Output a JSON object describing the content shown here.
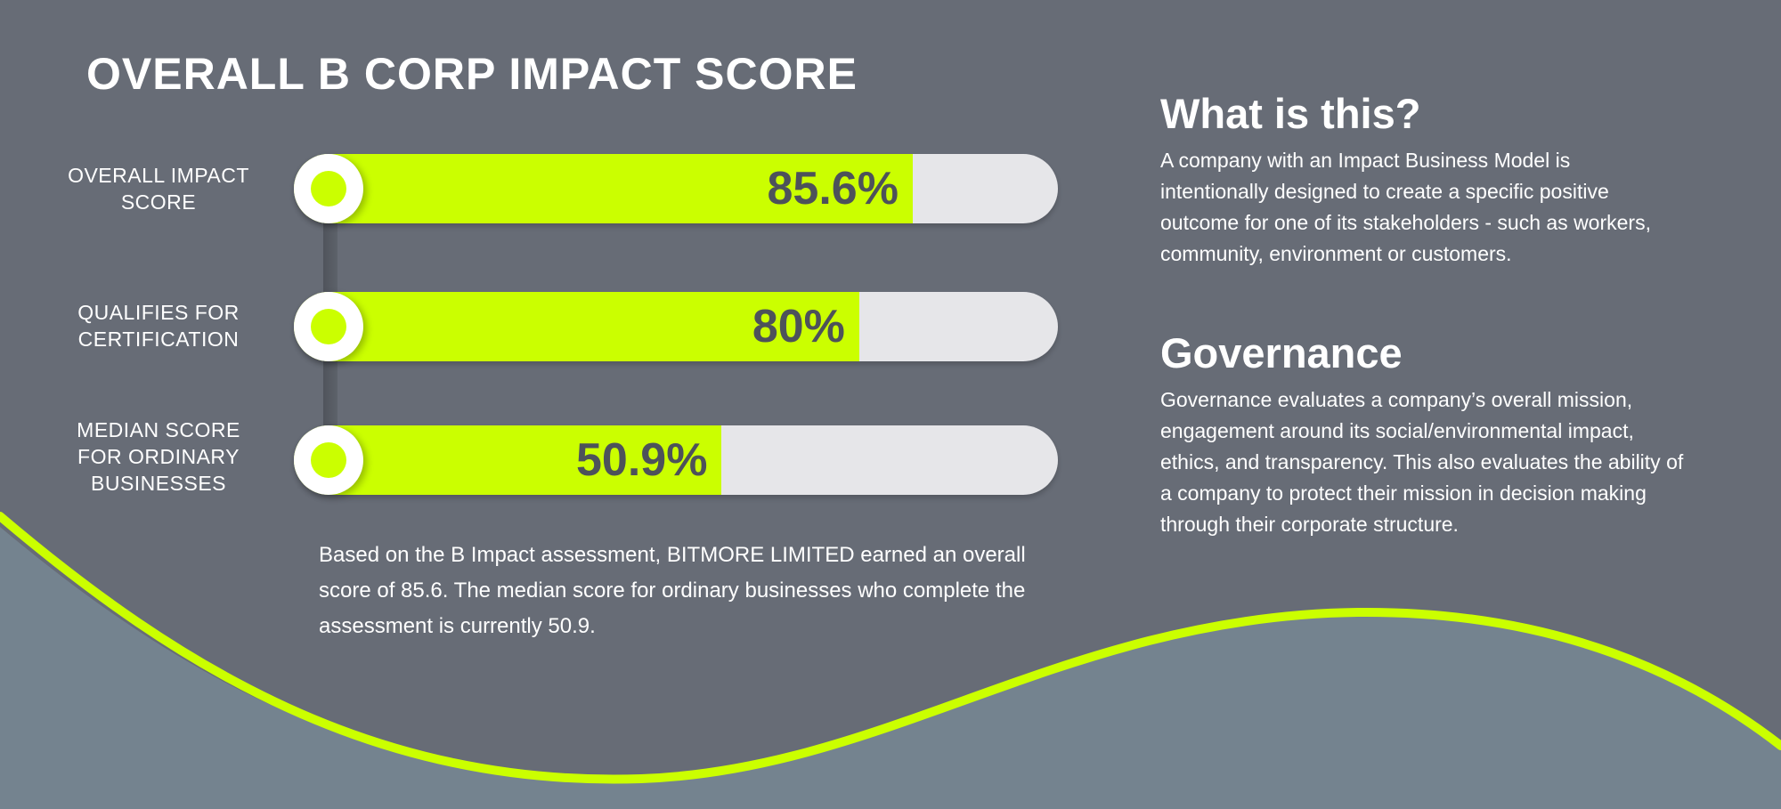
{
  "title": "OVERALL B CORP IMPACT SCORE",
  "colors": {
    "background": "#676c76",
    "accent": "#cbff00",
    "wave_fill": "#74838f",
    "track": "#e6e6e9",
    "value_text": "#4d525a"
  },
  "bars": [
    {
      "label": "OVERALL IMPACT SCORE",
      "value_text": "85.6%",
      "fill_fraction": 0.81
    },
    {
      "label": "QUALIFIES FOR CERTIFICATION",
      "value_text": "80%",
      "fill_fraction": 0.74
    },
    {
      "label": "MEDIAN SCORE FOR ORDINARY BUSINESSES",
      "value_text": "50.9%",
      "fill_fraction": 0.56
    }
  ],
  "summary": "Based on the B Impact assessment, BITMORE LIMITED earned an overall score of 85.6. The median score for ordinary businesses who complete the assessment is currently 50.9.",
  "what_is_this": {
    "heading": "What is this?",
    "text": "A company with an Impact Business Model is intentionally designed to create a specific positive outcome for one of its stakeholders - such as workers, community, environment or customers."
  },
  "governance": {
    "heading": "Governance",
    "text": "Governance evaluates a company’s overall mission, engagement around its social/environmental impact, ethics, and transparency. This also evaluates the ability of a company to protect their mission in decision making through their corporate structure."
  }
}
